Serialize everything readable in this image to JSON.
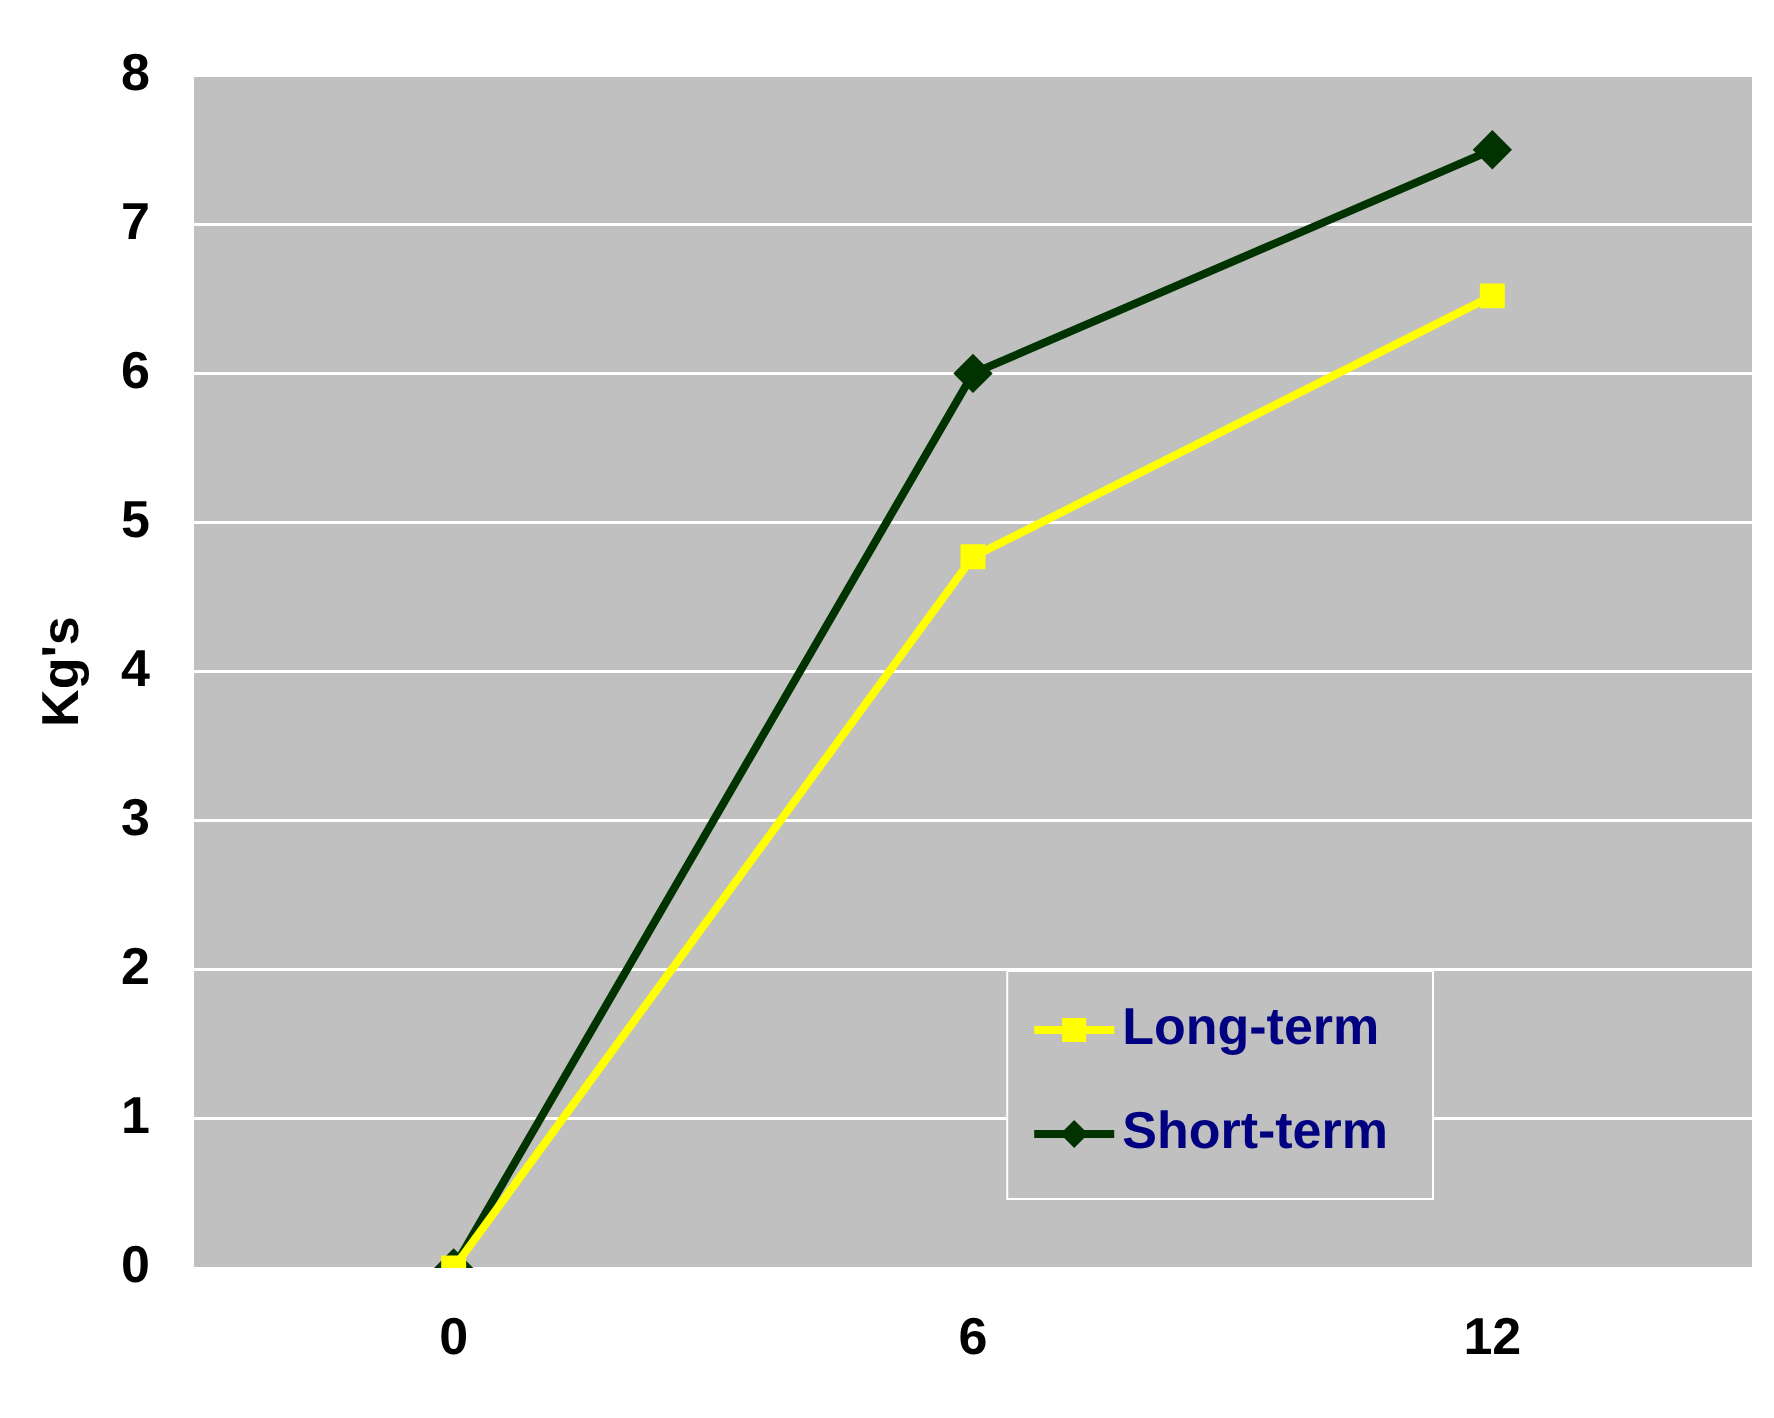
{
  "chart_data": {
    "type": "line",
    "ylabel": "Kg's",
    "categories": [
      "0",
      "6",
      "12"
    ],
    "series": [
      {
        "name": "Long-term",
        "color": "#ffff00",
        "values": [
          0,
          4.77,
          6.52
        ],
        "marker": "square"
      },
      {
        "name": "Short-term",
        "color": "#003300",
        "values": [
          0,
          6,
          7.5
        ],
        "marker": "diamond"
      }
    ],
    "ylim": [
      0,
      8
    ],
    "yticks": [
      0,
      1,
      2,
      3,
      4,
      5,
      6,
      7,
      8
    ],
    "grid": "y",
    "legend": "bottom right"
  }
}
